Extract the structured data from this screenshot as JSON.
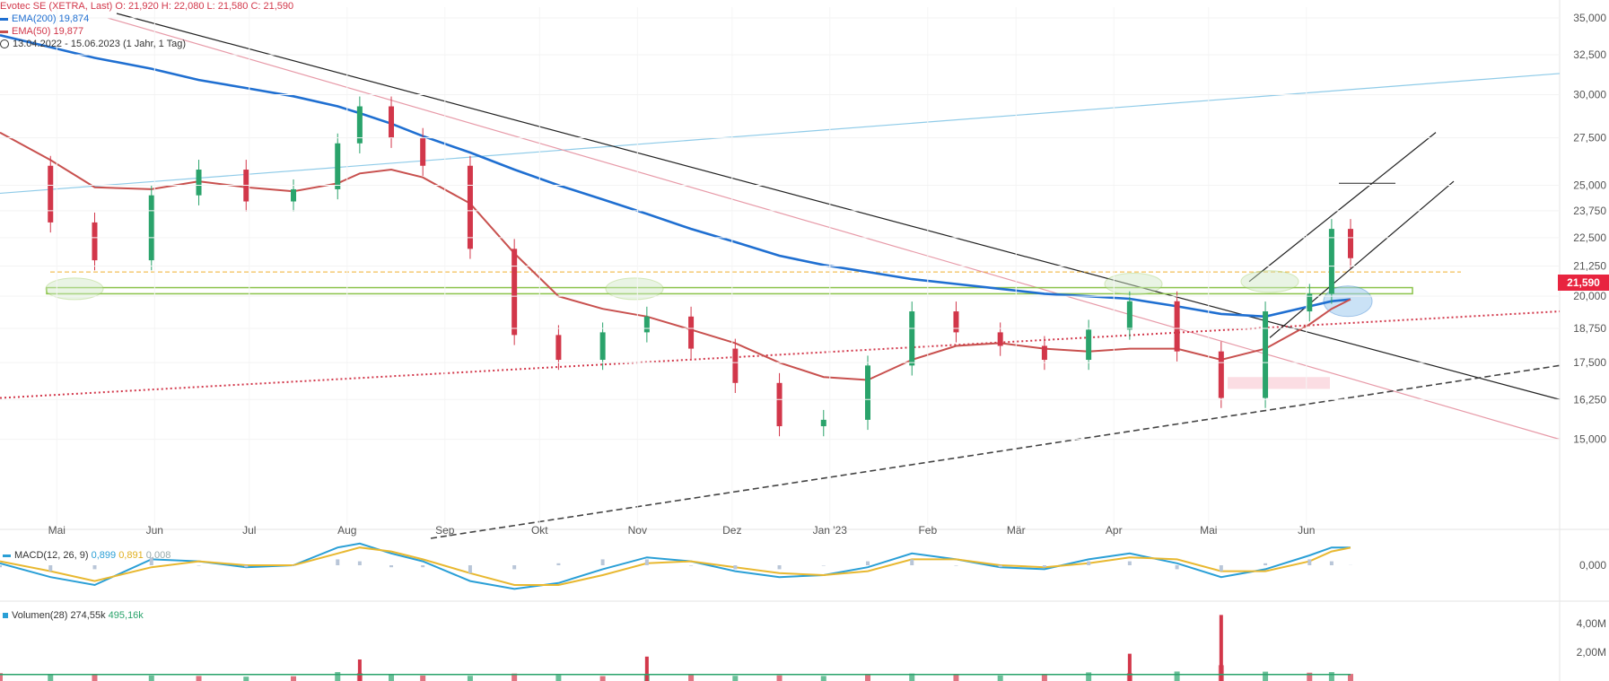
{
  "header": {
    "instrument": "Evotec SE (XETRA, Last)",
    "ohlc": "O: 21,920  H: 22,080  L: 21,580  C: 21,590",
    "ema200_label": "EMA(200) 19,874",
    "ema50_label": "EMA(50) 19,877",
    "range_label": "13.04.2022 - 15.06.2023  (1 Jahr, 1 Tag)"
  },
  "last_price_badge": "21,590",
  "macd_legend": {
    "name": "MACD(12, 26, 9)",
    "macd": "0,899",
    "signal": "0,891",
    "hist": "0,008"
  },
  "volume_legend": {
    "name": "Volumen(28)",
    "avg": "274,55k",
    "last": "495,16k"
  },
  "colors": {
    "up": "#2aa36b",
    "down": "#d2374a",
    "ema200": "#1f6fd1",
    "ema50": "#c8504e",
    "macd": "#2a9fd6",
    "signal": "#e8b830",
    "hist": "#b9c6d8",
    "badge": "#e8243f"
  },
  "chart_data": [
    {
      "type": "candlestick",
      "title": "Evotec SE (XETRA, Last)",
      "x_tick_labels": [
        "Mai",
        "Jun",
        "Jul",
        "Aug",
        "Sep",
        "Okt",
        "Nov",
        "Dez",
        "Jan '23",
        "Feb",
        "Mär",
        "Apr",
        "Mai",
        "Jun"
      ],
      "y_tick_labels": [
        "35,000",
        "32,500",
        "30,000",
        "27,500",
        "25,000",
        "23,750",
        "22,500",
        "21,250",
        "20,000",
        "18,750",
        "17,500",
        "16,250",
        "15,000"
      ],
      "y_ticks": [
        35.0,
        32.5,
        30.0,
        27.5,
        25.0,
        23.75,
        22.5,
        21.25,
        20.0,
        18.75,
        17.5,
        16.25,
        15.0
      ],
      "scale": "log",
      "ylim": [
        14.2,
        35.0
      ],
      "x": [
        "2022-04-13",
        "2022-04-29",
        "2022-05-13",
        "2022-05-31",
        "2022-06-15",
        "2022-06-30",
        "2022-07-15",
        "2022-07-29",
        "2022-08-05",
        "2022-08-15",
        "2022-08-25",
        "2022-09-09",
        "2022-09-23",
        "2022-10-07",
        "2022-10-21",
        "2022-11-04",
        "2022-11-18",
        "2022-12-02",
        "2022-12-16",
        "2022-12-30",
        "2023-01-13",
        "2023-01-27",
        "2023-02-10",
        "2023-02-24",
        "2023-03-10",
        "2023-03-24",
        "2023-04-06",
        "2023-04-21",
        "2023-05-05",
        "2023-05-19",
        "2023-06-02",
        "2023-06-09",
        "2023-06-15"
      ],
      "close": [
        26.0,
        23.2,
        21.5,
        24.5,
        25.8,
        24.2,
        24.8,
        27.2,
        29.3,
        27.5,
        26.0,
        22.0,
        18.5,
        17.6,
        18.6,
        19.2,
        18.0,
        16.8,
        15.4,
        15.6,
        17.4,
        19.4,
        18.6,
        18.1,
        17.6,
        18.7,
        19.8,
        17.9,
        16.3,
        19.4,
        20.1,
        22.9,
        21.59
      ],
      "series": [
        {
          "name": "EMA(200)",
          "values": [
            33.8,
            33.0,
            32.3,
            31.6,
            30.9,
            30.4,
            29.9,
            29.3,
            28.9,
            28.3,
            27.6,
            26.7,
            25.8,
            25.0,
            24.3,
            23.6,
            22.9,
            22.3,
            21.7,
            21.3,
            21.0,
            20.7,
            20.5,
            20.3,
            20.1,
            20.0,
            19.9,
            19.6,
            19.3,
            19.2,
            19.6,
            19.8,
            19.874
          ]
        },
        {
          "name": "EMA(50)",
          "values": [
            27.8,
            26.3,
            24.9,
            24.8,
            25.2,
            24.9,
            24.7,
            25.1,
            25.6,
            25.8,
            25.4,
            24.1,
            21.8,
            20.0,
            19.5,
            19.2,
            18.7,
            18.2,
            17.5,
            17.0,
            16.9,
            17.6,
            18.1,
            18.2,
            18.0,
            17.9,
            18.0,
            18.0,
            17.6,
            18.0,
            18.9,
            19.5,
            19.877
          ]
        }
      ]
    },
    {
      "type": "line",
      "title": "MACD(12, 26, 9)",
      "y_tick_labels": [
        "0,000"
      ],
      "series": [
        {
          "name": "MACD",
          "values": [
            0.1,
            -0.6,
            -1.0,
            0.3,
            0.2,
            -0.1,
            0.0,
            0.9,
            1.1,
            0.6,
            0.2,
            -0.8,
            -1.2,
            -0.9,
            -0.2,
            0.4,
            0.2,
            -0.3,
            -0.6,
            -0.5,
            -0.1,
            0.6,
            0.3,
            -0.1,
            -0.2,
            0.3,
            0.6,
            0.1,
            -0.6,
            -0.2,
            0.5,
            0.9,
            0.899
          ]
        },
        {
          "name": "Signal",
          "values": [
            0.2,
            -0.3,
            -0.8,
            -0.1,
            0.2,
            0.0,
            0.0,
            0.6,
            0.9,
            0.7,
            0.3,
            -0.4,
            -1.0,
            -1.0,
            -0.5,
            0.1,
            0.2,
            -0.1,
            -0.4,
            -0.5,
            -0.3,
            0.3,
            0.3,
            0.0,
            -0.1,
            0.1,
            0.4,
            0.3,
            -0.3,
            -0.3,
            0.2,
            0.7,
            0.891
          ]
        }
      ]
    },
    {
      "type": "bar",
      "title": "Volumen(28)",
      "y_tick_labels": [
        "4,00M",
        "2,00M"
      ],
      "y_ticks": [
        4.0,
        2.0
      ],
      "unit": "M",
      "values": [
        0.55,
        0.42,
        0.48,
        0.38,
        0.35,
        0.3,
        0.33,
        0.62,
        0.55,
        0.44,
        0.38,
        0.36,
        0.52,
        0.4,
        0.34,
        0.45,
        0.41,
        0.36,
        0.39,
        0.35,
        0.48,
        0.52,
        0.42,
        0.38,
        0.47,
        0.6,
        0.55,
        0.66,
        1.1,
        0.65,
        0.58,
        0.62,
        0.495
      ],
      "spikes": [
        {
          "date": "2023-05-05",
          "value": 4.6
        },
        {
          "date": "2023-04-06",
          "value": 1.9
        },
        {
          "date": "2022-11-04",
          "value": 1.7
        },
        {
          "date": "2022-08-05",
          "value": 1.5
        }
      ]
    }
  ]
}
